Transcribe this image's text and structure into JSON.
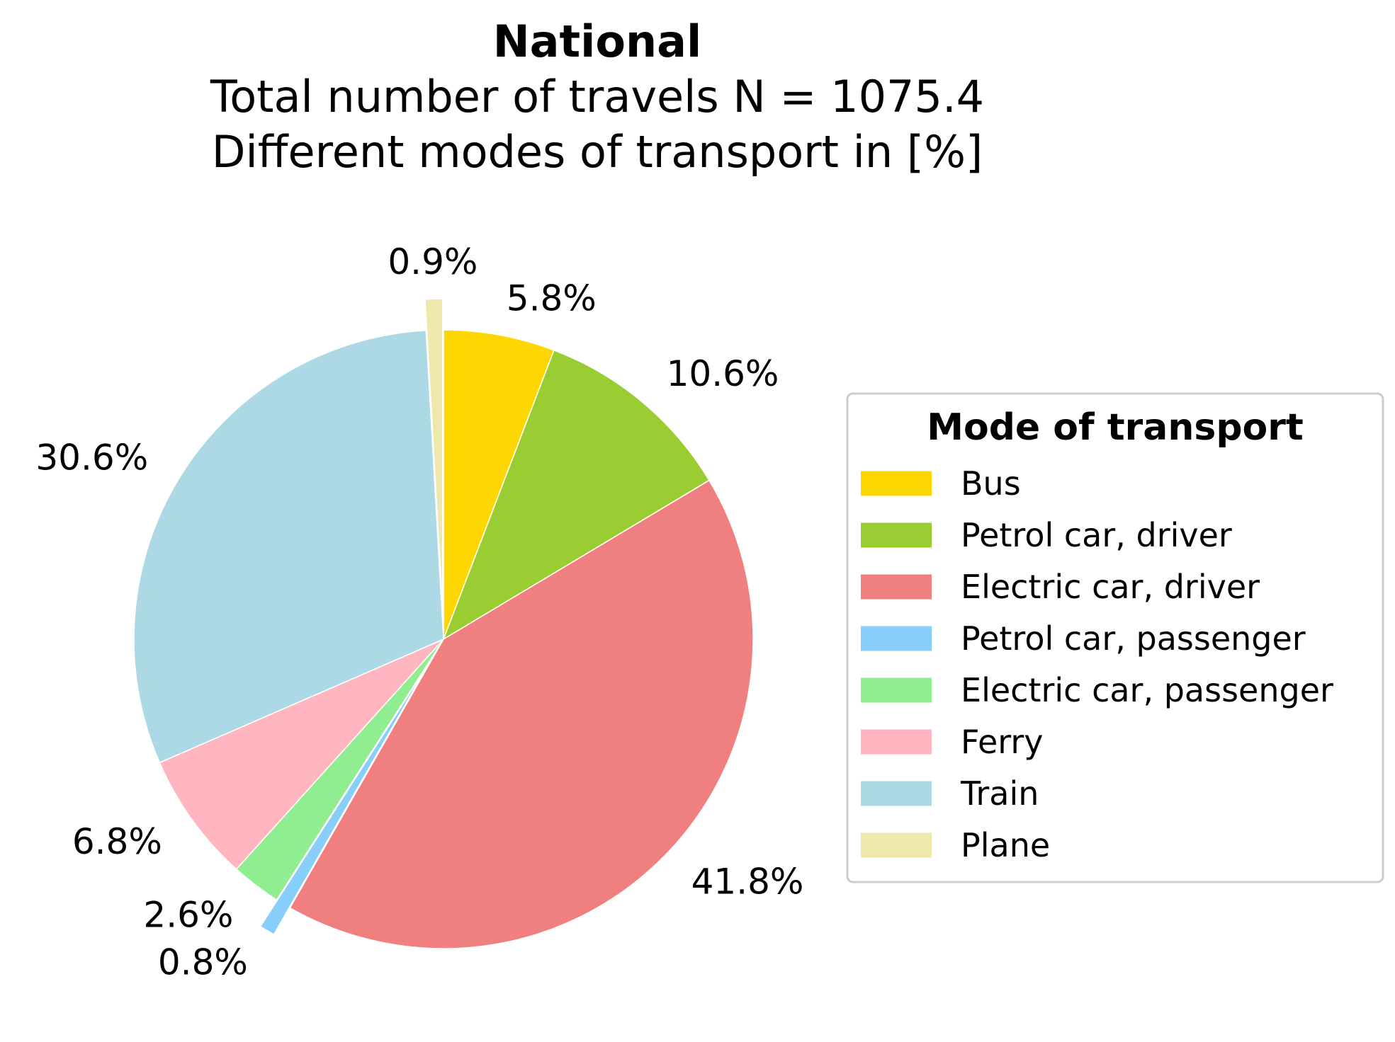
{
  "title": "National",
  "subtitle_lines": [
    "Total number of travels N = 1075.4",
    "Different modes of transport in [%]"
  ],
  "legend": {
    "title": "Mode of transport"
  },
  "chart_data": {
    "type": "pie",
    "title": "National",
    "subtitle": "Total number of travels N = 1075.4\nDifferent modes of transport in [%]",
    "unit": "%",
    "start_angle_deg": 90,
    "direction": "clockwise",
    "legend_placement": "right",
    "slices": [
      {
        "name": "Bus",
        "value": 5.8,
        "label": "5.8%",
        "color": "#FFD700",
        "exploded": false
      },
      {
        "name": "Petrol car, driver",
        "value": 10.6,
        "label": "10.6%",
        "color": "#9ACD32",
        "exploded": false
      },
      {
        "name": "Electric car, driver",
        "value": 41.8,
        "label": "41.8%",
        "color": "#F08080",
        "exploded": false
      },
      {
        "name": "Petrol car, passenger",
        "value": 0.8,
        "label": "0.8%",
        "color": "#87CEFA",
        "exploded": true
      },
      {
        "name": "Electric car, passenger",
        "value": 2.6,
        "label": "2.6%",
        "color": "#90EE90",
        "exploded": false
      },
      {
        "name": "Ferry",
        "value": 6.8,
        "label": "6.8%",
        "color": "#FFB6C1",
        "exploded": false
      },
      {
        "name": "Train",
        "value": 30.6,
        "label": "30.6%",
        "color": "#ADD8E6",
        "exploded": false
      },
      {
        "name": "Plane",
        "value": 0.9,
        "label": "0.9%",
        "color": "#EEE8AA",
        "exploded": true
      }
    ]
  }
}
